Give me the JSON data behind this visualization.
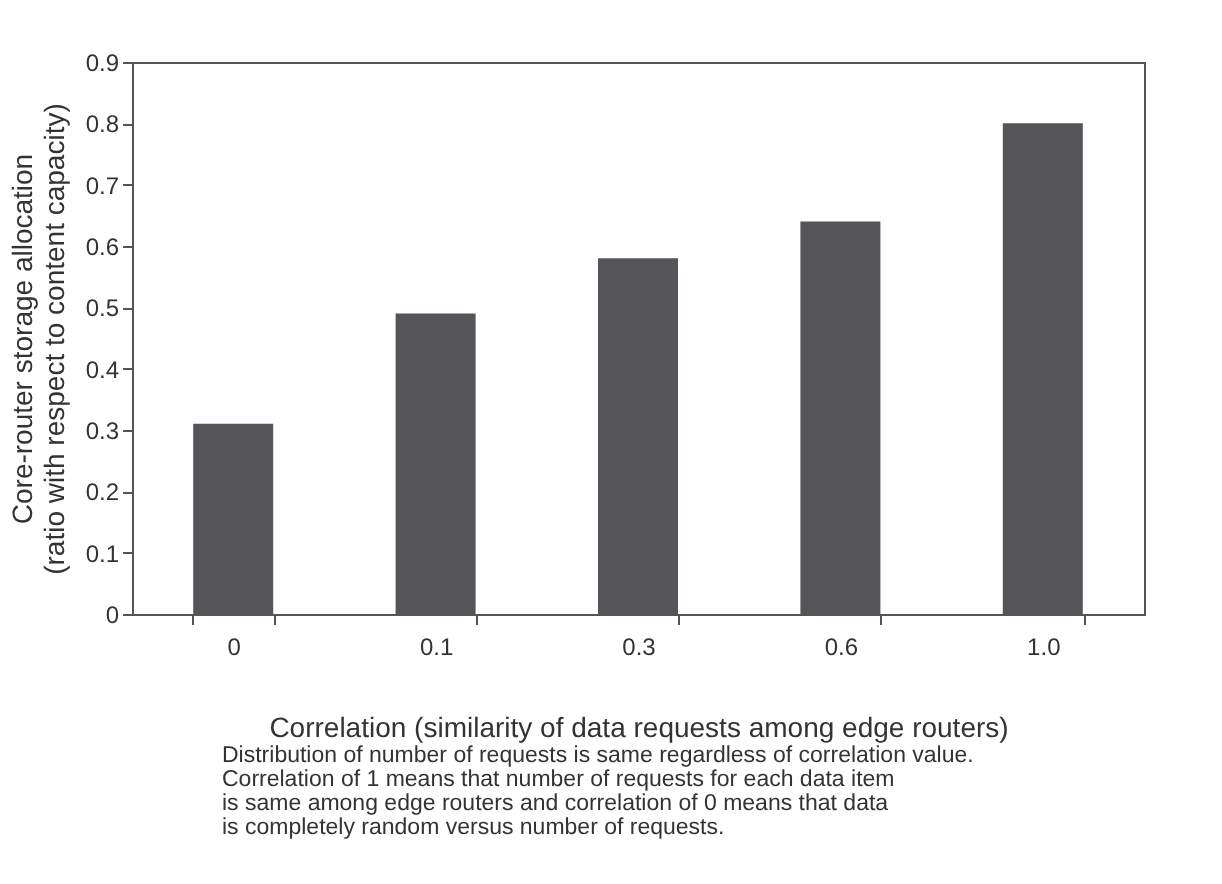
{
  "chart_data": {
    "type": "bar",
    "xlabel": "Correlation (similarity of data requests among edge routers)",
    "ylabel": "Core-router storage allocation\n(ratio with respect to content capacity)",
    "categories": [
      "0",
      "0.1",
      "0.3",
      "0.6",
      "1.0"
    ],
    "values": [
      0.31,
      0.49,
      0.58,
      0.64,
      0.8
    ],
    "color": "#555557",
    "ylim": [
      0,
      0.9
    ],
    "yticks": [
      0,
      0.1,
      0.2,
      0.3,
      0.4,
      0.5,
      0.6,
      0.7,
      0.8,
      0.9
    ],
    "grid": false,
    "annotations": [
      "Distribution of number of requests is same regardless of correlation value.\nCorrelation of 1 means that number of requests for each data item\nis same among edge routers and correlation of 0 means that data\nis completely random versus number of requests."
    ]
  }
}
